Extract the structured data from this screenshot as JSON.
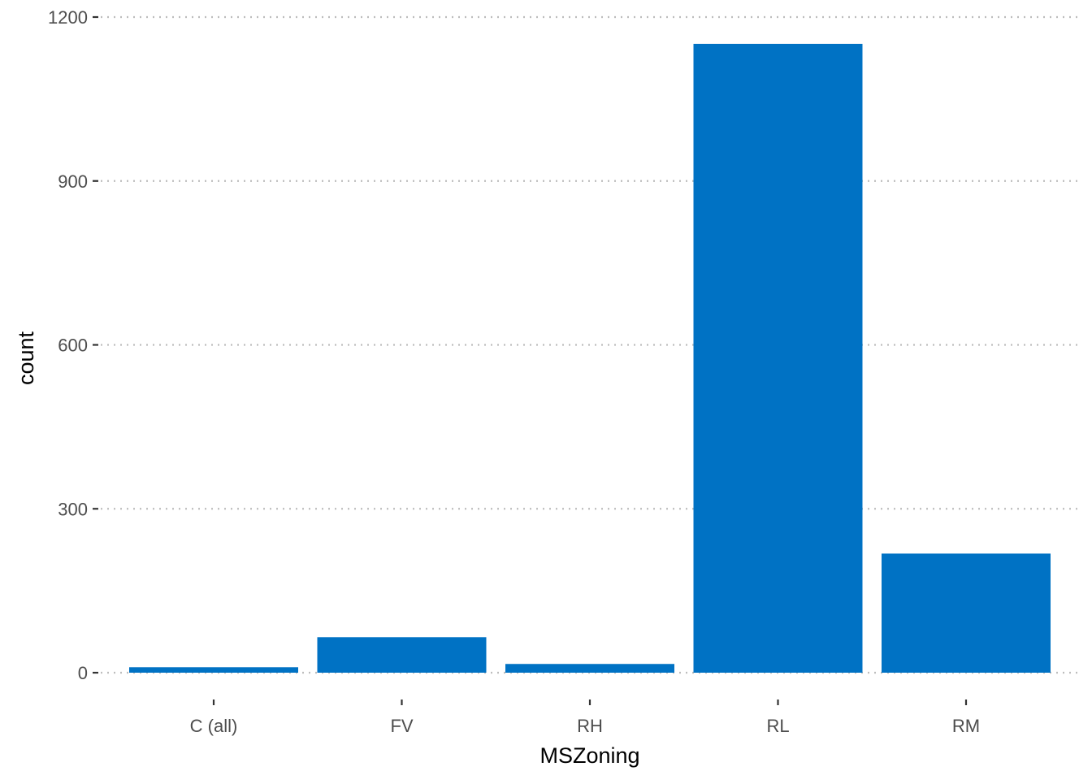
{
  "chart_data": {
    "type": "bar",
    "categories": [
      "C (all)",
      "FV",
      "RH",
      "RL",
      "RM"
    ],
    "values": [
      10,
      65,
      16,
      1151,
      218
    ],
    "xlabel": "MSZoning",
    "ylabel": "count",
    "ylim": [
      0,
      1200
    ],
    "yticks": [
      0,
      300,
      600,
      900,
      1200
    ],
    "ytick_labels": [
      "0",
      "300",
      "600",
      "900",
      "1200"
    ],
    "grid": "horizontal dotted",
    "legend": "none",
    "colors": {
      "bar": "#0072C4",
      "grid": "#bdbdbd",
      "tick": "#333333",
      "tick_label": "#4d4d4d",
      "axis_title": "#000000",
      "background": "#ffffff"
    }
  }
}
